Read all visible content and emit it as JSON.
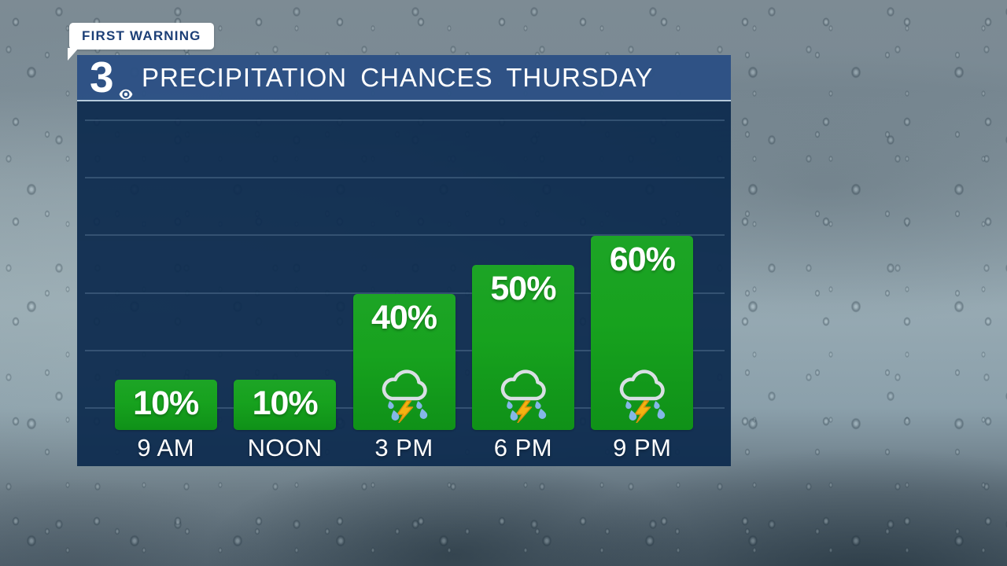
{
  "badge": {
    "label": "FIRST WARNING"
  },
  "header": {
    "station_number": "3",
    "logo_icon": "cbs-eye-icon",
    "title": "PRECIPITATION CHANCES THURSDAY"
  },
  "chart_data": {
    "type": "bar",
    "title": "PRECIPITATION CHANCES THURSDAY",
    "categories": [
      "9 AM",
      "NOON",
      "3 PM",
      "6 PM",
      "9 PM"
    ],
    "values": [
      10,
      10,
      40,
      50,
      60
    ],
    "value_labels": [
      "10%",
      "10%",
      "40%",
      "50%",
      "60%"
    ],
    "icons": [
      null,
      null,
      "storm-cloud-icon",
      "storm-cloud-icon",
      "storm-cloud-icon"
    ],
    "xlabel": "",
    "ylabel": "",
    "ylim": [
      0,
      100
    ],
    "grid": true,
    "gridline_step_percent": 20,
    "legend": false
  },
  "colors": {
    "bar_green": "#149e1f",
    "panel_navy": "#16355c",
    "header_blue": "#2d5284",
    "badge_text_navy": "#1c3f77",
    "text_white": "#ffffff",
    "lightning_yellow": "#f6b211",
    "raindrop_blue": "#84b7e7",
    "cloud_outline_gray": "#d9dfe4"
  }
}
